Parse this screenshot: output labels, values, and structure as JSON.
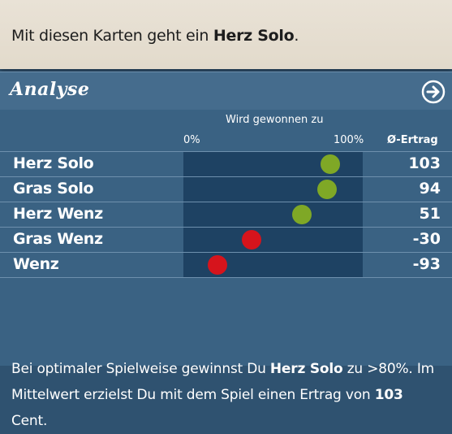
{
  "banner": {
    "prefix": "Mit diesen Karten geht ein ",
    "game": "Herz Solo",
    "suffix": "."
  },
  "panel": {
    "title": "Analyse",
    "next_icon": "arrow-right-circle-icon"
  },
  "columns": {
    "win_header": "Wird gewonnen zu",
    "scale_min": "0%",
    "scale_max": "100%",
    "yield_header": "Ø-Ertrag"
  },
  "rows": [
    {
      "name": "Herz Solo",
      "win_fraction": 0.82,
      "yield": "103",
      "color": "#7fa826"
    },
    {
      "name": "Gras Solo",
      "win_fraction": 0.8,
      "yield": "94",
      "color": "#7fa826"
    },
    {
      "name": "Herz Wenz",
      "win_fraction": 0.66,
      "yield": "51",
      "color": "#7fa826"
    },
    {
      "name": "Gras Wenz",
      "win_fraction": 0.38,
      "yield": "-30",
      "color": "#d6141c"
    },
    {
      "name": "Wenz",
      "win_fraction": 0.19,
      "yield": "-93",
      "color": "#d6141c"
    }
  ],
  "summary": {
    "t1": "Bei optimaler Spielweise gewinnst Du ",
    "game": "Herz Solo",
    "t2": " zu >80%. Im Mittelwert erzielst Du mit dem Spiel einen Ertrag von ",
    "amount": "103",
    "t3": " Cent."
  },
  "colors": {
    "positive": "#7fa826",
    "negative": "#d6141c",
    "panel": "#3a6283",
    "track": "#1e4263"
  }
}
